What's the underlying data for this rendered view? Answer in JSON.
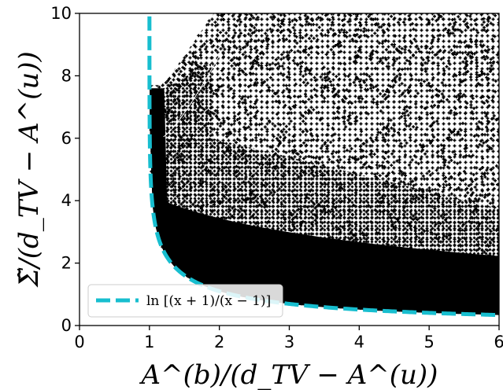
{
  "chart_data": {
    "type": "scatter",
    "title": "",
    "xlabel": "A^(b)/(d_TV − A^(u))",
    "ylabel": "Σ̃/(d_TV − A^(u))",
    "xlim": [
      0,
      6
    ],
    "ylim": [
      0,
      10
    ],
    "xticks": [
      0,
      1,
      2,
      3,
      4,
      5,
      6
    ],
    "yticks": [
      0,
      2,
      4,
      6,
      8,
      10
    ],
    "xtick_labels": [
      "0",
      "1",
      "2",
      "3",
      "4",
      "5",
      "6"
    ],
    "ytick_labels": [
      "0",
      "2",
      "4",
      "6",
      "8",
      "10"
    ],
    "grid": false,
    "legend_position": "lower-left",
    "series": [
      {
        "kind": "scatter",
        "color": "#000000",
        "marker": "plus",
        "description_points": "dense cloud of points bounded below by ln[(x+1)/(x-1)], x from 1 to 6, y up to 10"
      },
      {
        "kind": "line",
        "name": "ln [(x + 1)/(x − 1)]",
        "color": "#17becf",
        "dash": "dashed",
        "function": "ln((x+1)/(x-1))",
        "x_range": [
          1.0,
          6.0
        ]
      }
    ]
  }
}
